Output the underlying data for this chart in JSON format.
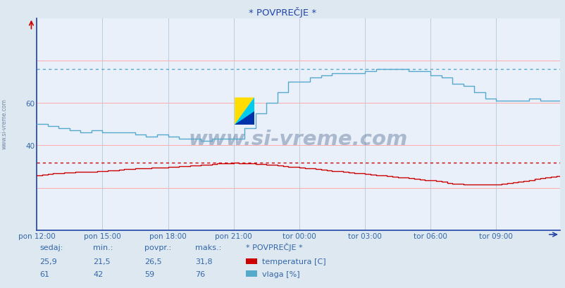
{
  "title": "* POVPREČJE *",
  "bg_color": "#dde8f0",
  "plot_bg_color": "#eaf0fa",
  "grid_color_h": "#ffaaaa",
  "grid_color_v": "#bbccdd",
  "xlabel_color": "#3366aa",
  "ylabel_color": "#3366aa",
  "temp_color": "#cc0000",
  "vlaga_color": "#55aacc",
  "temp_max_line_color": "#cc0000",
  "vlaga_max_line_color": "#55aacc",
  "axis_color": "#2244aa",
  "watermark_color": "#1a3a6a",
  "watermark_text": "www.si-vreme.com",
  "title_color": "#2244aa",
  "x_tick_labels": [
    "pon 12:00",
    "pon 15:00",
    "pon 18:00",
    "pon 21:00",
    "tor 00:00",
    "tor 03:00",
    "tor 06:00",
    "tor 09:00"
  ],
  "x_tick_positions": [
    0,
    36,
    72,
    108,
    144,
    180,
    216,
    252
  ],
  "total_points": 288,
  "ylim_min": 0,
  "ylim_max": 100,
  "ytick_vals": [
    40,
    60
  ],
  "temp_min": 21.5,
  "temp_max": 31.8,
  "temp_avg": 26.5,
  "temp_current": 25.9,
  "vlaga_min": 42,
  "vlaga_max": 76,
  "vlaga_avg": 59,
  "vlaga_current": 61,
  "footer_labels": [
    "sedaj:",
    "min.:",
    "povpr.:",
    "maks.:"
  ],
  "footer_values_temp": [
    "25,9",
    "21,5",
    "26,5",
    "31,8"
  ],
  "footer_values_vlaga": [
    "61",
    "42",
    "59",
    "76"
  ],
  "footer_series_label": "* POVPREČJE *",
  "footer_temp_label": "temperatura [C]",
  "footer_vlaga_label": "vlaga [%]",
  "logo_yellow": "#ffdd00",
  "logo_cyan": "#00ccee",
  "logo_blue": "#0033aa"
}
